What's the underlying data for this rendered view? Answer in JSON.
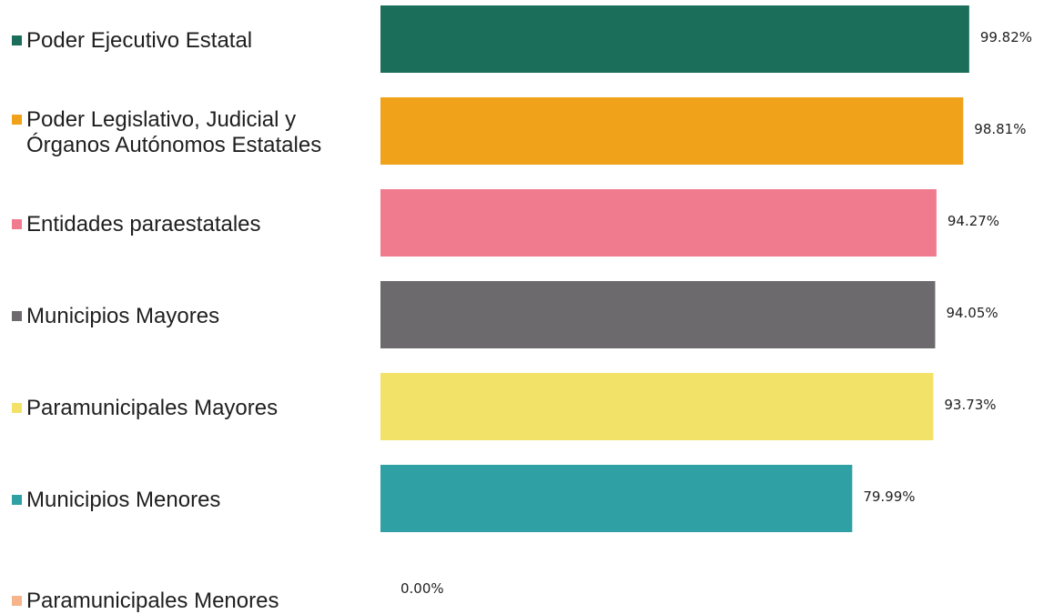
{
  "chart_data": {
    "type": "bar",
    "orientation": "horizontal",
    "categories": [
      [
        "Poder Ejecutivo Estatal"
      ],
      [
        "Poder Legislativo, Judicial y",
        "Órganos Autónomos Estatales"
      ],
      [
        "Entidades paraestatales"
      ],
      [
        "Municipios Mayores"
      ],
      [
        "Paramunicipales Mayores"
      ],
      [
        "Municipios Menores"
      ],
      [
        "Paramunicipales Menores"
      ]
    ],
    "values": [
      99.82,
      98.81,
      94.27,
      94.05,
      93.73,
      79.99,
      0.0
    ],
    "value_labels": [
      "99.82%",
      "98.81%",
      "94.27%",
      "94.05%",
      "93.73%",
      "79.99%",
      "0.00%"
    ],
    "colors": [
      "#1b6e5a",
      "#efa21a",
      "#f07b8e",
      "#6c6a6d",
      "#f2e268",
      "#2fa0a3",
      "#f5b48a"
    ],
    "xlim": [
      0,
      100
    ],
    "grid": false,
    "legend": "left"
  }
}
